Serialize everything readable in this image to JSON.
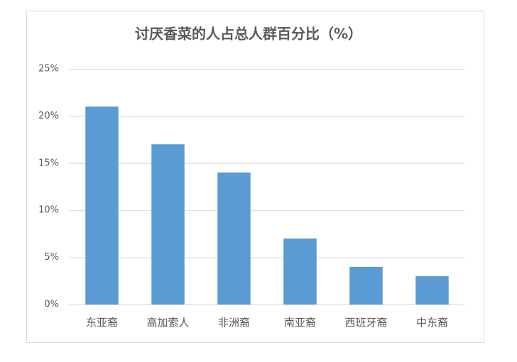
{
  "chart_data": {
    "type": "bar",
    "title": "讨厌香菜的人占总人群百分比（%）",
    "categories": [
      "东亚裔",
      "高加索人",
      "非洲裔",
      "南亚裔",
      "西班牙裔",
      "中东裔"
    ],
    "values": [
      21,
      17,
      14,
      7,
      4,
      3
    ],
    "color": "#5b9bd5",
    "ylim": [
      0,
      25
    ],
    "yticks": [
      {
        "value": 0,
        "label": "0%"
      },
      {
        "value": 5,
        "label": "5%"
      },
      {
        "value": 10,
        "label": "10%"
      },
      {
        "value": 15,
        "label": "15%"
      },
      {
        "value": 20,
        "label": "20%"
      },
      {
        "value": 25,
        "label": "25%"
      }
    ],
    "grid": true
  }
}
